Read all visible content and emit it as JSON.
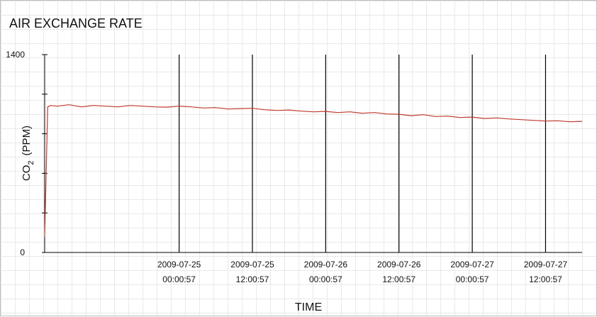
{
  "chart_data": {
    "type": "line",
    "title": "AIR EXCHANGE RATE",
    "xlabel": "TIME",
    "ylabel_main": "CO",
    "ylabel_sub": "2",
    "ylabel_unit": "(PPM)",
    "x_range": [
      "2009-07-24 02:00",
      "2009-07-27 18:00"
    ],
    "ylim": [
      0,
      1400
    ],
    "y_ticks": [
      {
        "value": 0,
        "label": "0"
      },
      {
        "value": 280,
        "label": ""
      },
      {
        "value": 560,
        "label": ""
      },
      {
        "value": 840,
        "label": ""
      },
      {
        "value": 1120,
        "label": ""
      },
      {
        "value": 1400,
        "label": "1400"
      }
    ],
    "x_ticks": [
      {
        "x": "2009-07-25 00:00:57",
        "line1": "2009-07-25",
        "line2": "00:00:57"
      },
      {
        "x": "2009-07-25 12:00:57",
        "line1": "2009-07-25",
        "line2": "12:00:57"
      },
      {
        "x": "2009-07-26 00:00:57",
        "line1": "2009-07-26",
        "line2": "00:00:57"
      },
      {
        "x": "2009-07-26 12:00:57",
        "line1": "2009-07-26",
        "line2": "12:00:57"
      },
      {
        "x": "2009-07-27 00:00:57",
        "line1": "2009-07-27",
        "line2": "00:00:57"
      },
      {
        "x": "2009-07-27 12:00:57",
        "line1": "2009-07-27",
        "line2": "12:00:57"
      }
    ],
    "grid": true,
    "series": [
      {
        "color": "#c0392b",
        "x": [
          "2009-07-24 02:00",
          "2009-07-24 02:30",
          "2009-07-24 03:00",
          "2009-07-24 04:00",
          "2009-07-24 06:00",
          "2009-07-24 08:00",
          "2009-07-24 10:00",
          "2009-07-24 12:00",
          "2009-07-24 14:00",
          "2009-07-24 16:00",
          "2009-07-24 18:00",
          "2009-07-24 20:00",
          "2009-07-24 22:00",
          "2009-07-25 00:00",
          "2009-07-25 02:00",
          "2009-07-25 04:00",
          "2009-07-25 06:00",
          "2009-07-25 08:00",
          "2009-07-25 10:00",
          "2009-07-25 12:00",
          "2009-07-25 14:00",
          "2009-07-25 16:00",
          "2009-07-25 18:00",
          "2009-07-25 20:00",
          "2009-07-25 22:00",
          "2009-07-26 00:00",
          "2009-07-26 02:00",
          "2009-07-26 04:00",
          "2009-07-26 06:00",
          "2009-07-26 08:00",
          "2009-07-26 10:00",
          "2009-07-26 12:00",
          "2009-07-26 14:00",
          "2009-07-26 16:00",
          "2009-07-26 18:00",
          "2009-07-26 20:00",
          "2009-07-26 22:00",
          "2009-07-27 00:00",
          "2009-07-27 02:00",
          "2009-07-27 04:00",
          "2009-07-27 06:00",
          "2009-07-27 08:00",
          "2009-07-27 10:00",
          "2009-07-27 12:00",
          "2009-07-27 14:00",
          "2009-07-27 16:00",
          "2009-07-27 18:00"
        ],
        "values": [
          110,
          1030,
          1040,
          1035,
          1045,
          1030,
          1040,
          1035,
          1030,
          1040,
          1035,
          1030,
          1028,
          1035,
          1030,
          1022,
          1025,
          1015,
          1018,
          1020,
          1010,
          1005,
          1008,
          1000,
          995,
          998,
          990,
          995,
          985,
          990,
          980,
          978,
          968,
          975,
          962,
          965,
          955,
          958,
          948,
          952,
          945,
          940,
          935,
          930,
          932,
          925,
          928
        ]
      }
    ]
  }
}
